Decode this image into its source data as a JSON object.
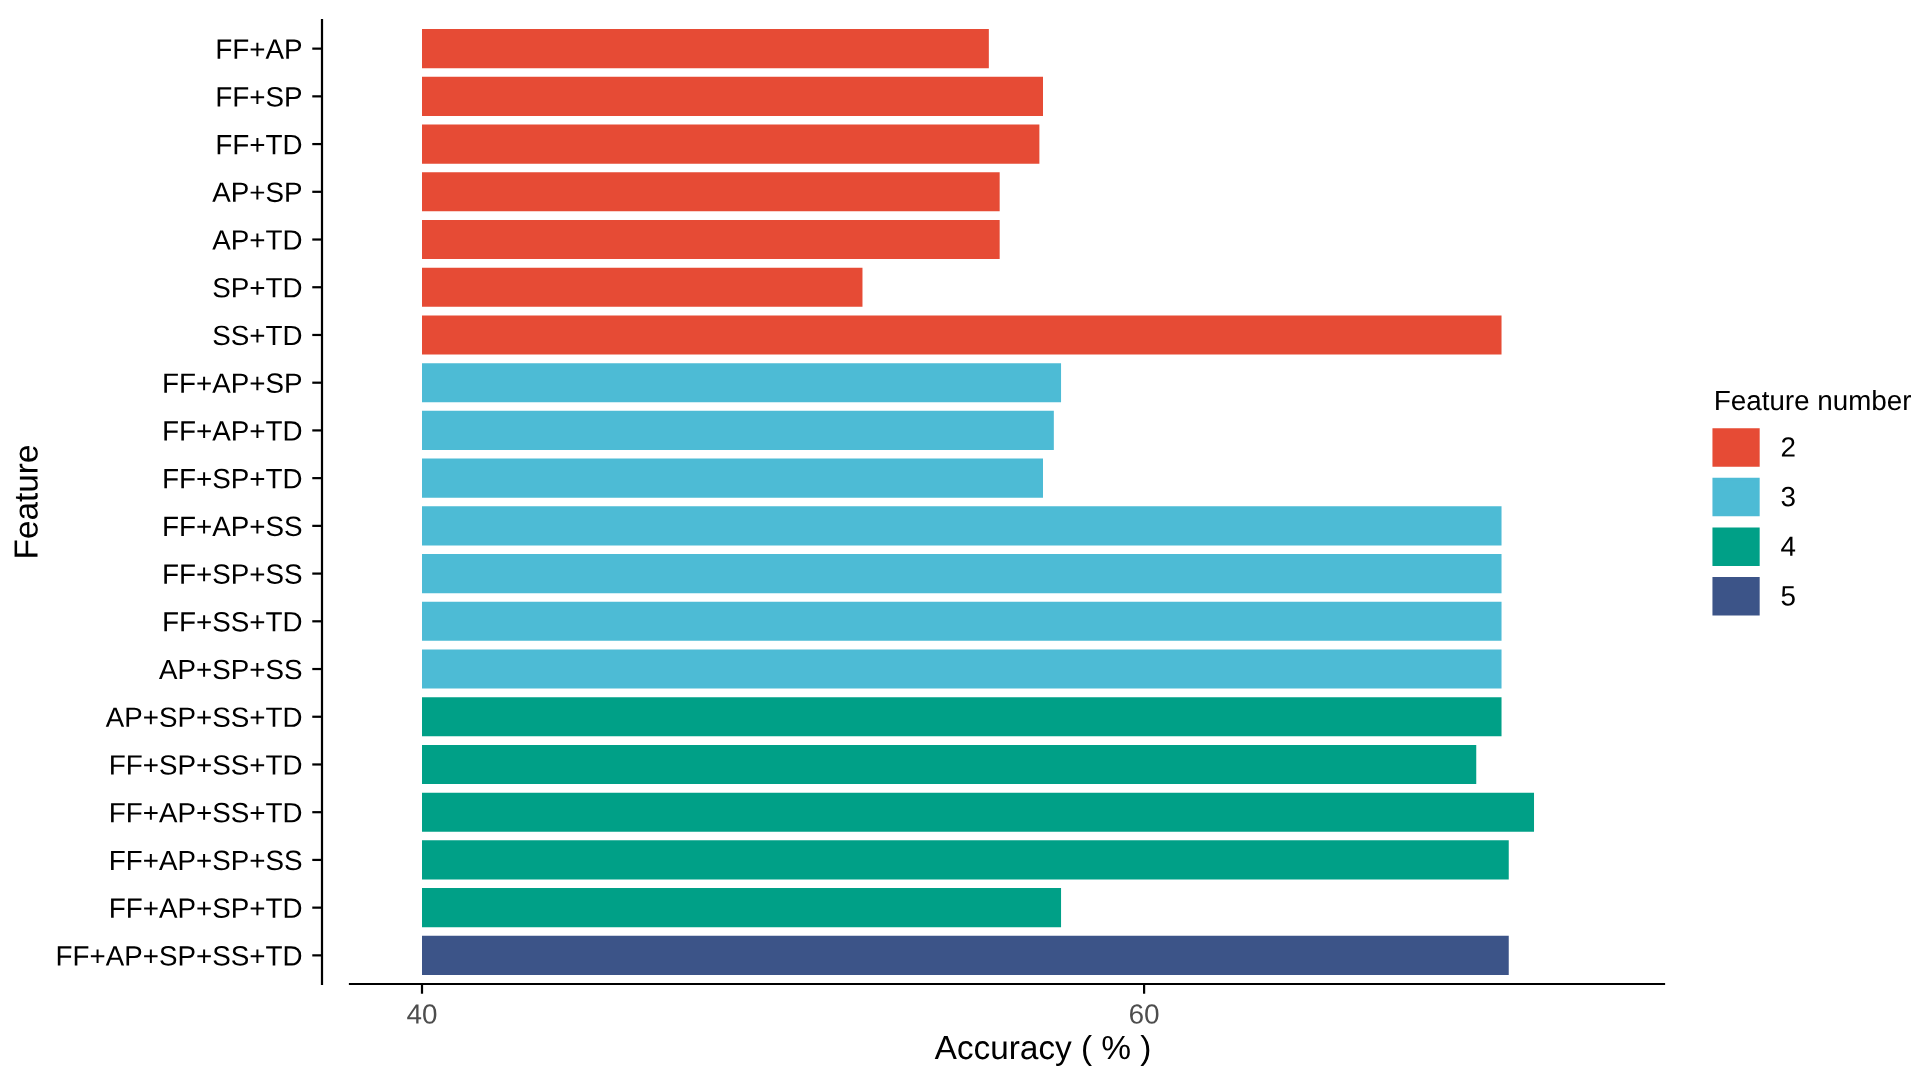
{
  "chart_data": {
    "type": "bar",
    "orientation": "horizontal",
    "xlabel": "Accuracy ( % )",
    "ylabel": "Feature",
    "legend_title": "Feature number",
    "legend": "right",
    "grid": false,
    "categories": [
      "FF+AP",
      "FF+SP",
      "FF+TD",
      "AP+SP",
      "AP+TD",
      "SP+TD",
      "SS+TD",
      "FF+AP+SP",
      "FF+AP+TD",
      "FF+SP+TD",
      "FF+AP+SS",
      "FF+SP+SS",
      "FF+SS+TD",
      "AP+SP+SS",
      "AP+SP+SS+TD",
      "FF+SP+SS+TD",
      "FF+AP+SS+TD",
      "FF+AP+SP+SS",
      "FF+AP+SP+TD",
      "FF+AP+SP+SS+TD"
    ],
    "series": [
      {
        "name": "2",
        "color": "#e64b35",
        "values": [
          55.7,
          57.2,
          57.1,
          56.0,
          56.0,
          52.2,
          69.9,
          null,
          null,
          null,
          null,
          null,
          null,
          null,
          null,
          null,
          null,
          null,
          null,
          null
        ]
      },
      {
        "name": "3",
        "color": "#4dbbd5",
        "values": [
          null,
          null,
          null,
          null,
          null,
          null,
          null,
          57.7,
          57.5,
          57.2,
          69.9,
          69.9,
          69.9,
          69.9,
          null,
          null,
          null,
          null,
          null,
          null
        ]
      },
      {
        "name": "4",
        "color": "#00a087",
        "values": [
          null,
          null,
          null,
          null,
          null,
          null,
          null,
          null,
          null,
          null,
          null,
          null,
          null,
          null,
          69.9,
          69.2,
          70.8,
          70.1,
          57.7,
          null
        ]
      },
      {
        "name": "5",
        "color": "#3c5488",
        "values": [
          null,
          null,
          null,
          null,
          null,
          null,
          null,
          null,
          null,
          null,
          null,
          null,
          null,
          null,
          null,
          null,
          null,
          null,
          null,
          70.1
        ]
      }
    ],
    "xlim": [
      40,
      74.4
    ],
    "xticks": [
      40,
      60
    ]
  }
}
